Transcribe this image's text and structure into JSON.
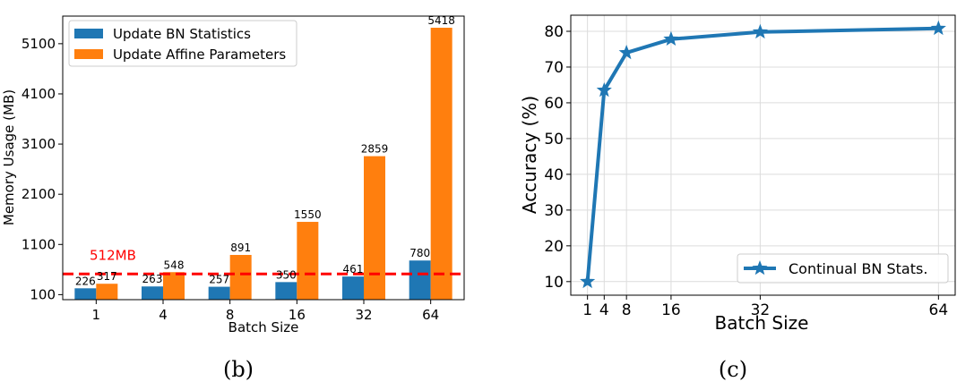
{
  "chart_data": [
    {
      "type": "bar",
      "categories": [
        "1",
        "4",
        "8",
        "16",
        "32",
        "64"
      ],
      "series": [
        {
          "name": "Update BN Statistics",
          "color": "#1f77b4",
          "values": [
            226,
            263,
            257,
            350,
            461,
            780
          ]
        },
        {
          "name": "Update Affine Parameters",
          "color": "#ff7f0e",
          "values": [
            317,
            548,
            891,
            1550,
            2859,
            5418
          ]
        }
      ],
      "data_labels": {
        "s0": [
          "226",
          "263",
          "257",
          "350",
          "461",
          "780"
        ],
        "s1": [
          "317",
          "548",
          "891",
          "1550",
          "2859",
          "5418"
        ]
      },
      "xlabel": "Batch Size",
      "ylabel": "Memory Usage (MB)",
      "yticks": [
        100,
        1100,
        2100,
        3100,
        4100,
        5100
      ],
      "ytick_labels": [
        "100",
        "1100",
        "2100",
        "3100",
        "4100",
        "5100"
      ],
      "ylim": [
        0,
        5650
      ],
      "reference_line": {
        "value": 512,
        "label": "512MB",
        "color": "#ff0000"
      },
      "grid": false,
      "legend": "top-left",
      "caption": "(b)"
    },
    {
      "type": "line",
      "x": [
        1,
        4,
        8,
        16,
        32,
        64
      ],
      "x_labels": [
        "1",
        "4",
        "8",
        "16",
        "32",
        "64"
      ],
      "series": [
        {
          "name": "Continual BN Stats.",
          "color": "#1f77b4",
          "marker": "star",
          "values": [
            10,
            63.5,
            74,
            77.8,
            79.8,
            80.8
          ]
        }
      ],
      "xlabel": "Batch Size",
      "ylabel": "Accuracy (%)",
      "yticks": [
        10,
        20,
        30,
        40,
        50,
        60,
        70,
        80
      ],
      "ytick_labels": [
        "10",
        "20",
        "30",
        "40",
        "50",
        "60",
        "70",
        "80"
      ],
      "xlim": [
        -2,
        67
      ],
      "ylim": [
        6.2,
        84.5
      ],
      "grid": true,
      "legend": "bottom-right",
      "caption": "(c)"
    }
  ]
}
